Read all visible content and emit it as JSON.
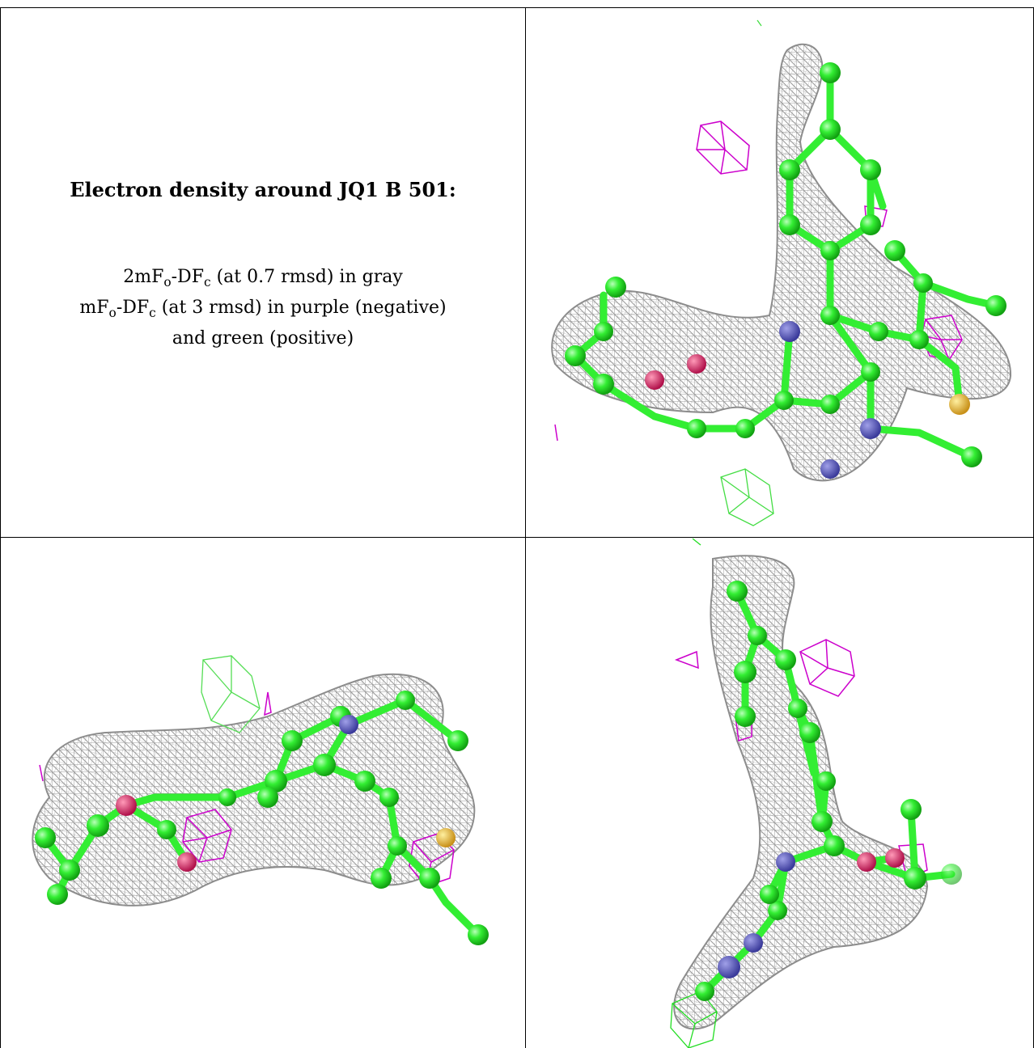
{
  "caption": {
    "title": "Electron density around JQ1 B 501:",
    "line1": {
      "a": "2mF",
      "b": "o",
      "c": "-DF",
      "d": "c",
      "e": " (at 0.7 rmsd) in gray"
    },
    "line2": {
      "a": "mF",
      "b": "o",
      "c": "-DF",
      "d": "c",
      "e": " (at 3 rmsd) in purple (negative)"
    },
    "line3": "and green (positive)"
  },
  "colors": {
    "mesh_2fofc": "#9a9a9a",
    "mesh_negative": "#cc00cc",
    "mesh_positive": "#22dd22",
    "carbon": "#33ee33",
    "nitrogen": "#5a5ab4",
    "oxygen": "#e0245e",
    "sulfur": "#f2c040"
  },
  "panels": [
    {
      "name": "view-top-right",
      "icon": "molecule-view"
    },
    {
      "name": "view-bottom-left",
      "icon": "molecule-view"
    },
    {
      "name": "view-bottom-right",
      "icon": "molecule-view"
    }
  ]
}
